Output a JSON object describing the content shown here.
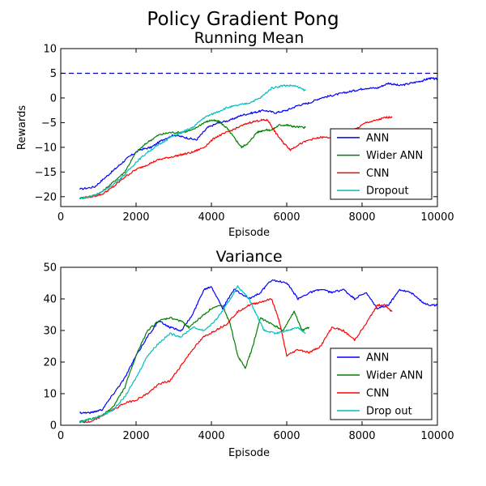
{
  "figure": {
    "title": "Policy Gradient Pong"
  },
  "chart_data": [
    {
      "type": "line",
      "title": "Running Mean",
      "xlabel": "Episode",
      "ylabel": "Rewards",
      "xlim": [
        0,
        10000
      ],
      "ylim": [
        -22,
        10
      ],
      "xticks": [
        0,
        2000,
        4000,
        6000,
        8000,
        10000
      ],
      "yticks": [
        -20,
        -15,
        -10,
        -5,
        0,
        5,
        10
      ],
      "hline": {
        "y": 5,
        "color": "#0000bf",
        "style": "dashed"
      },
      "legend_position": "lower-right",
      "series": [
        {
          "name": "ANN",
          "color": "#0000ff",
          "x": [
            500,
            900,
            1200,
            1500,
            1800,
            2100,
            2400,
            2700,
            3000,
            3300,
            3600,
            3900,
            4200,
            4500,
            4800,
            5100,
            5400,
            5700,
            6000,
            6300,
            6600,
            6900,
            7200,
            7500,
            7800,
            8100,
            8400,
            8700,
            9000,
            9300,
            9600,
            9800,
            10000
          ],
          "y": [
            -18.5,
            -18,
            -16,
            -14,
            -12,
            -10.5,
            -10,
            -8.5,
            -7.5,
            -8,
            -8.5,
            -6,
            -5,
            -4.5,
            -3.5,
            -3,
            -2.5,
            -3,
            -2.5,
            -1.5,
            -1,
            0,
            0.5,
            1,
            1.5,
            2,
            2,
            3,
            2.5,
            3,
            3.5,
            4,
            3.8
          ]
        },
        {
          "name": "Wider ANN",
          "color": "#008000",
          "x": [
            500,
            800,
            1100,
            1400,
            1700,
            2000,
            2300,
            2600,
            2900,
            3200,
            3500,
            3800,
            4000,
            4200,
            4400,
            4600,
            4800,
            5000,
            5200,
            5400,
            5600,
            5800,
            6000,
            6200,
            6500
          ],
          "y": [
            -20.3,
            -20,
            -19,
            -17,
            -15,
            -11,
            -9,
            -7.5,
            -7,
            -7,
            -6.5,
            -5,
            -4.5,
            -4.8,
            -6,
            -8,
            -10,
            -9,
            -7,
            -6.5,
            -6.5,
            -5.5,
            -5.5,
            -5.8,
            -6
          ]
        },
        {
          "name": "CNN",
          "color": "#ff0000",
          "x": [
            500,
            800,
            1100,
            1400,
            1700,
            2000,
            2300,
            2600,
            2900,
            3200,
            3500,
            3800,
            4100,
            4400,
            4700,
            5000,
            5300,
            5500,
            5700,
            5900,
            6100,
            6300,
            6600,
            6900,
            7200,
            7500,
            7800,
            8100,
            8400,
            8600,
            8800
          ],
          "y": [
            -20.3,
            -20,
            -19.5,
            -18,
            -16,
            -14.5,
            -13.5,
            -12.5,
            -12,
            -11.5,
            -11,
            -10,
            -8,
            -7,
            -6,
            -5,
            -4.5,
            -4.5,
            -7,
            -9,
            -10.5,
            -9.5,
            -8.5,
            -8,
            -8,
            -7.5,
            -6.5,
            -5,
            -4.5,
            -4,
            -3.8
          ]
        },
        {
          "name": "Dropout",
          "color": "#00bfbf",
          "x": [
            500,
            800,
            1100,
            1400,
            1700,
            2000,
            2300,
            2600,
            2900,
            3200,
            3500,
            3800,
            4100,
            4400,
            4700,
            5000,
            5300,
            5600,
            5900,
            6200,
            6500
          ],
          "y": [
            -20.3,
            -20,
            -19,
            -17.5,
            -15.5,
            -13,
            -11,
            -9.5,
            -8,
            -7,
            -6,
            -4,
            -3,
            -2,
            -1.5,
            -1,
            0,
            2,
            2.5,
            2.5,
            1.5
          ]
        }
      ]
    },
    {
      "type": "line",
      "title": "Variance",
      "xlabel": "Episode",
      "ylabel": "",
      "xlim": [
        0,
        10000
      ],
      "ylim": [
        0,
        50
      ],
      "xticks": [
        0,
        2000,
        4000,
        6000,
        8000,
        10000
      ],
      "yticks": [
        0,
        10,
        20,
        30,
        40,
        50
      ],
      "legend_position": "lower-right",
      "series": [
        {
          "name": "ANN",
          "color": "#0000ff",
          "x": [
            500,
            800,
            1100,
            1400,
            1700,
            2000,
            2300,
            2600,
            2900,
            3200,
            3500,
            3800,
            4000,
            4300,
            4600,
            5000,
            5300,
            5600,
            6000,
            6300,
            6600,
            6900,
            7200,
            7500,
            7800,
            8100,
            8400,
            8700,
            9000,
            9300,
            9600,
            9800,
            10000
          ],
          "y": [
            4,
            4,
            5,
            10,
            15,
            22,
            28,
            33,
            31,
            30,
            35,
            43,
            44,
            37,
            43,
            40,
            42,
            46,
            45,
            40,
            42,
            43,
            42,
            43,
            40,
            42,
            37,
            38,
            43,
            42,
            39,
            38,
            38
          ]
        },
        {
          "name": "Wider ANN",
          "color": "#008000",
          "x": [
            500,
            800,
            1100,
            1400,
            1700,
            2000,
            2300,
            2600,
            2900,
            3200,
            3400,
            3700,
            4000,
            4300,
            4500,
            4700,
            4900,
            5100,
            5300,
            5600,
            5900,
            6200,
            6400,
            6600
          ],
          "y": [
            1,
            2,
            3,
            6,
            12,
            22,
            30,
            33,
            34,
            33,
            31,
            34,
            37,
            38,
            32,
            22,
            18,
            25,
            34,
            32,
            30,
            36,
            30,
            31
          ]
        },
        {
          "name": "CNN",
          "color": "#ff0000",
          "x": [
            500,
            800,
            1100,
            1400,
            1700,
            2000,
            2300,
            2600,
            2900,
            3200,
            3500,
            3800,
            4100,
            4400,
            4700,
            5000,
            5300,
            5600,
            5800,
            6000,
            6300,
            6600,
            6900,
            7200,
            7500,
            7800,
            8100,
            8400,
            8600,
            8800
          ],
          "y": [
            1,
            1,
            3,
            5,
            7,
            8,
            10,
            13,
            14,
            19,
            24,
            28,
            30,
            32,
            36,
            38,
            39,
            40,
            33,
            22,
            24,
            23,
            25,
            31,
            30,
            27,
            32,
            38,
            38,
            36
          ]
        },
        {
          "name": "Drop out",
          "color": "#00bfbf",
          "x": [
            500,
            800,
            1100,
            1400,
            1700,
            2000,
            2300,
            2600,
            2900,
            3200,
            3500,
            3800,
            4100,
            4400,
            4700,
            5000,
            5200,
            5400,
            5700,
            6000,
            6300,
            6500
          ],
          "y": [
            1,
            2,
            3,
            5,
            9,
            15,
            22,
            26,
            29,
            28,
            31,
            30,
            33,
            38,
            44,
            40,
            35,
            30,
            29,
            30,
            31,
            29
          ]
        }
      ]
    }
  ]
}
